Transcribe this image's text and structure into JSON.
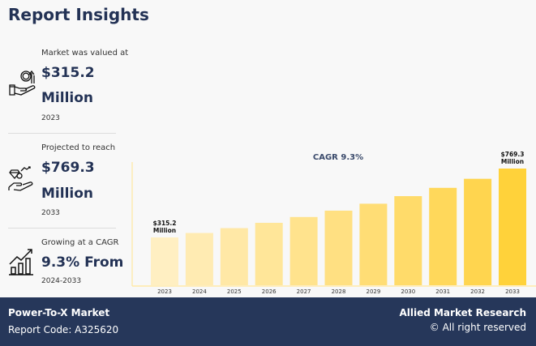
{
  "title": "Report Insights",
  "stats": [
    {
      "label": "Market was valued at",
      "value": "$315.2",
      "unit": "Million",
      "year": "2023",
      "icon": "money-hand-icon"
    },
    {
      "label": "Projected to reach",
      "value": "$769.3",
      "unit": "Million",
      "year": "2033",
      "icon": "diamond-hand-icon"
    },
    {
      "label": "Growing at a CAGR",
      "value": "9.3% From",
      "year": "2024-2033",
      "icon": "growth-chart-icon"
    }
  ],
  "chart_data": {
    "type": "bar",
    "title": "CAGR 9.3%",
    "categories": [
      "2023",
      "2024",
      "2025",
      "2026",
      "2027",
      "2028",
      "2029",
      "2030",
      "2031",
      "2032",
      "2033"
    ],
    "values": [
      315.2,
      344.5,
      376.5,
      411.5,
      449.8,
      491.7,
      537.4,
      587.4,
      642.0,
      701.7,
      769.3
    ],
    "annotations": [
      {
        "category": "2023",
        "text": [
          "$315.2",
          "Million"
        ]
      },
      {
        "category": "2033",
        "text": [
          "$769.3",
          "Million"
        ]
      }
    ],
    "colors": [
      "#ffefc2",
      "#ffebb2",
      "#ffe8a6",
      "#ffe699",
      "#ffe38d",
      "#ffe082",
      "#ffdd75",
      "#ffdb6a",
      "#ffd85b",
      "#ffd54f",
      "#ffd23a"
    ],
    "grid": false,
    "ylim": [
      0,
      800
    ]
  },
  "footer": {
    "market": "Power-To-X Market",
    "code": "Report Code: A325620",
    "brand": "Allied Market Research",
    "rights": "© All right reserved"
  }
}
